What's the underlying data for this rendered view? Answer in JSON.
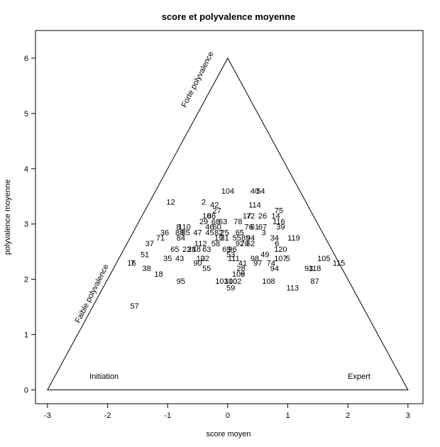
{
  "chart_data": {
    "type": "scatter",
    "title": "score et polyvalence moyenne",
    "xlabel": "score moyen",
    "ylabel": "polyvalence moyenne",
    "xlim": [
      -3.2,
      3.25
    ],
    "ylim": [
      -0.25,
      6.5
    ],
    "x_ticks": [
      -3,
      -2,
      -1,
      0,
      1,
      2,
      3
    ],
    "y_ticks": [
      0,
      1,
      2,
      3,
      4,
      5,
      6
    ],
    "triangle": [
      [
        -3,
        0
      ],
      [
        0,
        6
      ],
      [
        3,
        0
      ]
    ],
    "annotations": [
      {
        "text": "Initiation",
        "x": -2.3,
        "y": 0.2,
        "angle": 0
      },
      {
        "text": "Expert",
        "x": 2.0,
        "y": 0.2,
        "angle": 0
      },
      {
        "text": "Forte polyvalence",
        "x": -0.7,
        "y": 5.1,
        "angle": -63
      },
      {
        "text": "Faible polyvalence",
        "x": -2.47,
        "y": 1.2,
        "angle": -63
      }
    ],
    "points": [
      {
        "label": "104",
        "x": 0.0,
        "y": 3.6
      },
      {
        "label": "40",
        "x": 0.45,
        "y": 3.6
      },
      {
        "label": "54",
        "x": 0.55,
        "y": 3.6
      },
      {
        "label": "12",
        "x": -0.95,
        "y": 3.4
      },
      {
        "label": "2",
        "x": -0.4,
        "y": 3.4
      },
      {
        "label": "42",
        "x": -0.22,
        "y": 3.35
      },
      {
        "label": "114",
        "x": 0.45,
        "y": 3.35
      },
      {
        "label": "27",
        "x": -0.18,
        "y": 3.25
      },
      {
        "label": "75",
        "x": 0.85,
        "y": 3.25
      },
      {
        "label": "10",
        "x": -0.35,
        "y": 3.15
      },
      {
        "label": "86",
        "x": -0.27,
        "y": 3.15
      },
      {
        "label": "17",
        "x": 0.32,
        "y": 3.15
      },
      {
        "label": "72",
        "x": 0.38,
        "y": 3.15
      },
      {
        "label": "26",
        "x": 0.58,
        "y": 3.15
      },
      {
        "label": "14",
        "x": 0.8,
        "y": 3.15
      },
      {
        "label": "29",
        "x": -0.4,
        "y": 3.05
      },
      {
        "label": "68",
        "x": -0.2,
        "y": 3.05
      },
      {
        "label": "63",
        "x": -0.08,
        "y": 3.05
      },
      {
        "label": "78",
        "x": 0.17,
        "y": 3.05
      },
      {
        "label": "116",
        "x": 0.85,
        "y": 3.05
      },
      {
        "label": "8",
        "x": -0.82,
        "y": 2.95
      },
      {
        "label": "110",
        "x": -0.72,
        "y": 2.95
      },
      {
        "label": "46",
        "x": -0.3,
        "y": 2.95
      },
      {
        "label": "60",
        "x": -0.18,
        "y": 2.95
      },
      {
        "label": "76",
        "x": 0.35,
        "y": 2.95
      },
      {
        "label": "61",
        "x": 0.45,
        "y": 2.95
      },
      {
        "label": "67",
        "x": 0.58,
        "y": 2.95
      },
      {
        "label": "39",
        "x": 0.88,
        "y": 2.95
      },
      {
        "label": "36",
        "x": -1.05,
        "y": 2.85
      },
      {
        "label": "88",
        "x": -0.8,
        "y": 2.85
      },
      {
        "label": "85",
        "x": -0.7,
        "y": 2.85
      },
      {
        "label": "47",
        "x": -0.5,
        "y": 2.85
      },
      {
        "label": "45",
        "x": -0.3,
        "y": 2.85
      },
      {
        "label": "82",
        "x": -0.15,
        "y": 2.85
      },
      {
        "label": "25",
        "x": -0.05,
        "y": 2.85
      },
      {
        "label": "65",
        "x": 0.2,
        "y": 2.85
      },
      {
        "label": "3",
        "x": 0.6,
        "y": 2.85
      },
      {
        "label": "71",
        "x": -1.12,
        "y": 2.75
      },
      {
        "label": "84",
        "x": -0.78,
        "y": 2.75
      },
      {
        "label": "19",
        "x": -0.15,
        "y": 2.75
      },
      {
        "label": "31",
        "x": -0.05,
        "y": 2.75
      },
      {
        "label": "55",
        "x": 0.15,
        "y": 2.75
      },
      {
        "label": "89",
        "x": 0.3,
        "y": 2.75
      },
      {
        "label": "94",
        "x": 0.38,
        "y": 2.75
      },
      {
        "label": "34",
        "x": 0.78,
        "y": 2.75
      },
      {
        "label": "119",
        "x": 1.1,
        "y": 2.75
      },
      {
        "label": "37",
        "x": -1.3,
        "y": 2.65
      },
      {
        "label": "1",
        "x": -0.52,
        "y": 2.65
      },
      {
        "label": "12",
        "x": -0.42,
        "y": 2.65
      },
      {
        "label": "58",
        "x": -0.2,
        "y": 2.65
      },
      {
        "label": "92",
        "x": 0.2,
        "y": 2.65
      },
      {
        "label": "70",
        "x": 0.28,
        "y": 2.65
      },
      {
        "label": "62",
        "x": 0.38,
        "y": 2.65
      },
      {
        "label": "6",
        "x": 0.82,
        "y": 2.65
      },
      {
        "label": "65",
        "x": -0.88,
        "y": 2.55
      },
      {
        "label": "23",
        "x": -0.68,
        "y": 2.55
      },
      {
        "label": "28",
        "x": -0.6,
        "y": 2.55
      },
      {
        "label": "18",
        "x": -0.52,
        "y": 2.55
      },
      {
        "label": "63",
        "x": -0.35,
        "y": 2.55
      },
      {
        "label": "69",
        "x": -0.02,
        "y": 2.55
      },
      {
        "label": "96",
        "x": 0.08,
        "y": 2.55
      },
      {
        "label": "120",
        "x": 0.88,
        "y": 2.55
      },
      {
        "label": "51",
        "x": -1.38,
        "y": 2.45
      },
      {
        "label": "53",
        "x": 0.05,
        "y": 2.45
      },
      {
        "label": "49",
        "x": 0.62,
        "y": 2.45
      },
      {
        "label": "35",
        "x": -1.0,
        "y": 2.38
      },
      {
        "label": "43",
        "x": -0.8,
        "y": 2.38
      },
      {
        "label": "10",
        "x": -0.45,
        "y": 2.38
      },
      {
        "label": "22",
        "x": -0.38,
        "y": 2.38
      },
      {
        "label": "111",
        "x": 0.1,
        "y": 2.38
      },
      {
        "label": "98",
        "x": 0.45,
        "y": 2.38
      },
      {
        "label": "107",
        "x": 0.88,
        "y": 2.38
      },
      {
        "label": "5",
        "x": 1.0,
        "y": 2.38
      },
      {
        "label": "105",
        "x": 1.6,
        "y": 2.38
      },
      {
        "label": "16",
        "x": -1.6,
        "y": 2.3
      },
      {
        "label": "7",
        "x": -1.58,
        "y": 2.3
      },
      {
        "label": "90",
        "x": -0.5,
        "y": 2.3
      },
      {
        "label": "41",
        "x": 0.25,
        "y": 2.3
      },
      {
        "label": "97",
        "x": 0.5,
        "y": 2.3
      },
      {
        "label": "74",
        "x": 0.72,
        "y": 2.3
      },
      {
        "label": "115",
        "x": 1.85,
        "y": 2.3
      },
      {
        "label": "38",
        "x": -1.35,
        "y": 2.2
      },
      {
        "label": "55",
        "x": -0.35,
        "y": 2.2
      },
      {
        "label": "28",
        "x": 0.22,
        "y": 2.2
      },
      {
        "label": "94",
        "x": 0.78,
        "y": 2.2
      },
      {
        "label": "93",
        "x": 1.35,
        "y": 2.2
      },
      {
        "label": "118",
        "x": 1.45,
        "y": 2.2
      },
      {
        "label": "18",
        "x": -1.15,
        "y": 2.1
      },
      {
        "label": "109",
        "x": 0.18,
        "y": 2.1
      },
      {
        "label": "6",
        "x": 0.25,
        "y": 2.1
      },
      {
        "label": "95",
        "x": -0.78,
        "y": 1.97
      },
      {
        "label": "103",
        "x": -0.1,
        "y": 1.97
      },
      {
        "label": "100",
        "x": 0.05,
        "y": 1.97
      },
      {
        "label": "102",
        "x": 0.12,
        "y": 1.97
      },
      {
        "label": "108",
        "x": 0.68,
        "y": 1.97
      },
      {
        "label": "87",
        "x": 1.45,
        "y": 1.97
      },
      {
        "label": "59",
        "x": 0.05,
        "y": 1.85
      },
      {
        "label": "113",
        "x": 1.08,
        "y": 1.85
      },
      {
        "label": "57",
        "x": -1.55,
        "y": 1.52
      }
    ]
  }
}
